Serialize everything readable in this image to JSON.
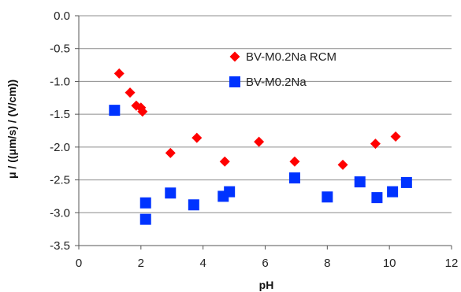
{
  "chart_data": {
    "type": "scatter",
    "title": "",
    "xlabel": "pH",
    "ylabel": "μ / ((μm/s) / (V/cm))",
    "xlim": [
      0,
      12
    ],
    "ylim": [
      -3.5,
      0.0
    ],
    "xticks": [
      "0",
      "2",
      "4",
      "6",
      "8",
      "10",
      "12"
    ],
    "yticks": [
      "0.0",
      "-0.5",
      "-1.0",
      "-1.5",
      "-2.0",
      "-2.5",
      "-3.0",
      "-3.5"
    ],
    "grid": "horizontal",
    "legend_position": "upper-center",
    "series": [
      {
        "name": "BV-M0.2Na RCM",
        "marker": "diamond",
        "color": "#ff0000",
        "points": [
          {
            "x": 1.3,
            "y": -0.88
          },
          {
            "x": 1.65,
            "y": -1.17
          },
          {
            "x": 1.85,
            "y": -1.37
          },
          {
            "x": 2.0,
            "y": -1.4
          },
          {
            "x": 2.05,
            "y": -1.46
          },
          {
            "x": 2.95,
            "y": -2.09
          },
          {
            "x": 3.8,
            "y": -1.86
          },
          {
            "x": 4.7,
            "y": -2.22
          },
          {
            "x": 5.8,
            "y": -1.92
          },
          {
            "x": 6.95,
            "y": -2.22
          },
          {
            "x": 8.5,
            "y": -2.27
          },
          {
            "x": 9.55,
            "y": -1.95
          },
          {
            "x": 10.2,
            "y": -1.84
          }
        ]
      },
      {
        "name": "BV-M0.2Na",
        "marker": "square",
        "color": "#0033ff",
        "points": [
          {
            "x": 1.15,
            "y": -1.44
          },
          {
            "x": 2.15,
            "y": -2.85
          },
          {
            "x": 2.15,
            "y": -3.1
          },
          {
            "x": 2.95,
            "y": -2.7
          },
          {
            "x": 3.7,
            "y": -2.88
          },
          {
            "x": 4.65,
            "y": -2.75
          },
          {
            "x": 4.85,
            "y": -2.68
          },
          {
            "x": 6.95,
            "y": -2.47
          },
          {
            "x": 8.0,
            "y": -2.76
          },
          {
            "x": 9.05,
            "y": -2.53
          },
          {
            "x": 9.6,
            "y": -2.77
          },
          {
            "x": 10.1,
            "y": -2.68
          },
          {
            "x": 10.55,
            "y": -2.54
          }
        ]
      }
    ]
  },
  "colors": {
    "gridline": "#8c8c8c",
    "axis": "#555555",
    "rcm_marker": "#ff0000",
    "base_marker": "#0033ff"
  }
}
